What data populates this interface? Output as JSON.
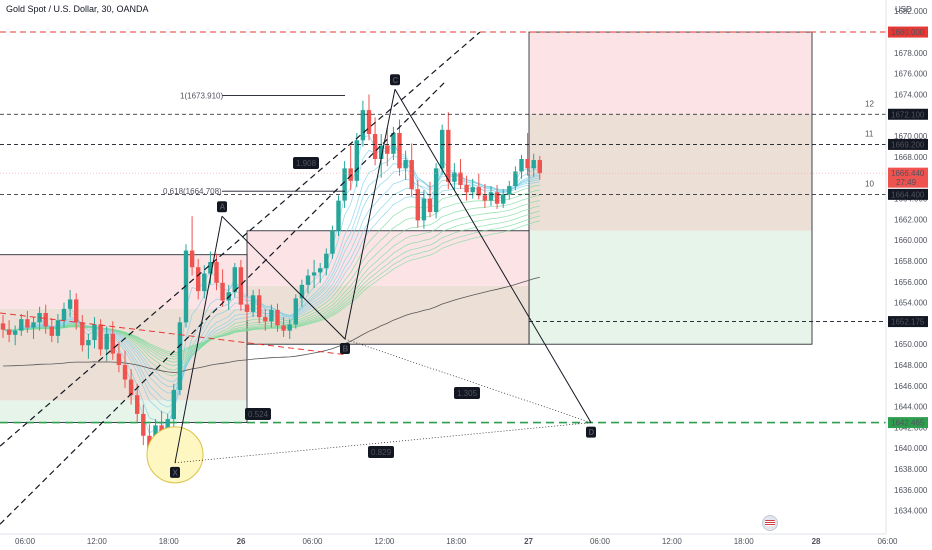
{
  "header": {
    "title": "Gold Spot / U.S. Dollar, 30, OANDA"
  },
  "colors": {
    "up": "#26a69a",
    "down": "#ef5350",
    "sell_zone": "#fce4e6",
    "buy_zone": "#e6f4ea",
    "neutral_zone": "#ecdfd6",
    "ribbon_green": "#7bd99b",
    "ribbon_blue": "#7fd0e8",
    "red_line": "#e53935",
    "green_line": "#2e9e4f"
  },
  "chart_data": {
    "type": "candlestick",
    "currency": "USD",
    "y_axis": {
      "ylim": [
        1633.2,
        1682.6
      ],
      "ticks": [
        "1634.000",
        "1636.000",
        "1638.000",
        "1640.000",
        "1642.000",
        "1644.000",
        "1646.000",
        "1648.000",
        "1650.000",
        "1652.000",
        "1654.000",
        "1656.000",
        "1658.000",
        "1660.000",
        "1662.000",
        "1664.000",
        "1666.000",
        "1668.000",
        "1670.000",
        "1672.000",
        "1674.000",
        "1676.000",
        "1678.000",
        "1680.000",
        "1682.000"
      ]
    },
    "x_axis": {
      "ticks": [
        "06:00",
        "12:00",
        "18:00",
        "26",
        "06:00",
        "12:00",
        "18:00",
        "27",
        "06:00",
        "12:00",
        "18:00",
        "28",
        "06:00"
      ]
    },
    "price_labels": [
      {
        "text": "1680.000",
        "price": 1680.0,
        "color": "#e53935"
      },
      {
        "text": "1672.100",
        "price": 1672.1,
        "color": "#131722"
      },
      {
        "text": "1669.200",
        "price": 1669.2,
        "color": "#131722"
      },
      {
        "text": "1666.440",
        "sub": "27:49",
        "price": 1666.44,
        "color": "#ef5350"
      },
      {
        "text": "1664.400",
        "price": 1664.4,
        "color": "#131722"
      },
      {
        "text": "1652.175",
        "price": 1652.175,
        "color": "#131722"
      },
      {
        "text": "1642.465",
        "price": 1642.465,
        "color": "#2e9e4f"
      }
    ],
    "level_numbers": [
      {
        "text": "12",
        "price": 1672.1
      },
      {
        "text": "11",
        "price": 1669.2
      },
      {
        "text": "10",
        "price": 1664.4
      }
    ],
    "fib_labels": [
      {
        "text": "1(1673.910)",
        "price": 1673.91
      },
      {
        "text": "0.618(1664.708)",
        "price": 1664.708
      }
    ],
    "pattern_points": [
      {
        "label": "X",
        "price": 1638.6
      },
      {
        "label": "A",
        "price": 1662.3
      },
      {
        "label": "B",
        "price": 1650.5
      },
      {
        "label": "C",
        "price": 1674.5
      },
      {
        "label": "D",
        "price": 1642.465
      }
    ],
    "ratios": [
      "0.524",
      "1.908",
      "1.305",
      "0.829"
    ],
    "candles": [
      [
        1652.0,
        1652.8,
        1650.6,
        1651.4
      ],
      [
        1651.4,
        1652.3,
        1650.2,
        1650.9
      ],
      [
        1650.9,
        1651.8,
        1649.9,
        1651.3
      ],
      [
        1651.3,
        1652.9,
        1650.8,
        1652.4
      ],
      [
        1652.4,
        1653.2,
        1651.1,
        1651.6
      ],
      [
        1651.6,
        1652.6,
        1650.5,
        1652.1
      ],
      [
        1652.1,
        1653.6,
        1651.3,
        1653.0
      ],
      [
        1653.0,
        1653.8,
        1651.0,
        1651.7
      ],
      [
        1651.7,
        1652.5,
        1650.2,
        1650.8
      ],
      [
        1650.8,
        1652.9,
        1650.1,
        1652.3
      ],
      [
        1652.3,
        1654.0,
        1651.6,
        1653.4
      ],
      [
        1653.4,
        1655.2,
        1652.6,
        1654.3
      ],
      [
        1654.3,
        1654.9,
        1651.4,
        1652.1
      ],
      [
        1652.1,
        1652.8,
        1649.3,
        1649.9
      ],
      [
        1649.9,
        1651.0,
        1648.6,
        1650.4
      ],
      [
        1650.4,
        1652.6,
        1649.6,
        1651.9
      ],
      [
        1651.9,
        1652.4,
        1648.9,
        1649.5
      ],
      [
        1649.5,
        1651.7,
        1648.4,
        1651.0
      ],
      [
        1651.0,
        1652.2,
        1648.5,
        1649.1
      ],
      [
        1649.1,
        1650.2,
        1647.3,
        1648.0
      ],
      [
        1648.0,
        1649.4,
        1645.8,
        1646.6
      ],
      [
        1646.6,
        1647.6,
        1644.2,
        1645.1
      ],
      [
        1645.1,
        1646.2,
        1642.5,
        1643.3
      ],
      [
        1643.3,
        1644.2,
        1640.3,
        1641.2
      ],
      [
        1641.2,
        1642.3,
        1638.6,
        1639.9
      ],
      [
        1639.9,
        1642.8,
        1639.2,
        1642.2
      ],
      [
        1642.2,
        1643.6,
        1640.6,
        1641.5
      ],
      [
        1641.5,
        1643.3,
        1640.2,
        1642.8
      ],
      [
        1642.8,
        1646.2,
        1642.0,
        1645.6
      ],
      [
        1645.6,
        1652.6,
        1645.1,
        1652.1
      ],
      [
        1652.1,
        1659.6,
        1651.6,
        1659.0
      ],
      [
        1659.0,
        1662.3,
        1656.6,
        1657.4
      ],
      [
        1657.4,
        1658.2,
        1654.3,
        1655.1
      ],
      [
        1655.1,
        1657.6,
        1654.4,
        1656.8
      ],
      [
        1656.8,
        1658.9,
        1655.8,
        1657.9
      ],
      [
        1657.9,
        1658.7,
        1655.2,
        1655.9
      ],
      [
        1655.9,
        1657.2,
        1653.6,
        1654.2
      ],
      [
        1654.2,
        1655.7,
        1653.3,
        1655.0
      ],
      [
        1655.0,
        1657.8,
        1654.5,
        1657.4
      ],
      [
        1657.4,
        1658.1,
        1653.2,
        1653.8
      ],
      [
        1653.8,
        1654.6,
        1652.3,
        1653.1
      ],
      [
        1653.1,
        1655.2,
        1652.6,
        1654.7
      ],
      [
        1654.7,
        1655.3,
        1652.0,
        1652.6
      ],
      [
        1652.6,
        1653.4,
        1651.3,
        1652.2
      ],
      [
        1652.2,
        1653.8,
        1651.6,
        1653.3
      ],
      [
        1653.3,
        1653.9,
        1651.2,
        1651.8
      ],
      [
        1651.8,
        1652.6,
        1650.7,
        1651.3
      ],
      [
        1651.3,
        1652.4,
        1650.5,
        1651.9
      ],
      [
        1651.9,
        1654.8,
        1651.5,
        1654.4
      ],
      [
        1654.4,
        1656.2,
        1653.6,
        1655.7
      ],
      [
        1655.7,
        1657.2,
        1654.9,
        1656.6
      ],
      [
        1656.6,
        1658.1,
        1655.4,
        1656.9
      ],
      [
        1656.9,
        1657.8,
        1655.9,
        1657.3
      ],
      [
        1657.3,
        1659.2,
        1656.6,
        1658.7
      ],
      [
        1658.7,
        1661.4,
        1658.2,
        1660.9
      ],
      [
        1660.9,
        1664.3,
        1660.4,
        1663.8
      ],
      [
        1663.8,
        1667.6,
        1663.1,
        1666.9
      ],
      [
        1666.9,
        1669.1,
        1664.8,
        1665.7
      ],
      [
        1665.7,
        1670.3,
        1665.1,
        1669.6
      ],
      [
        1669.6,
        1673.4,
        1669.0,
        1672.5
      ],
      [
        1672.5,
        1674.0,
        1669.6,
        1670.2
      ],
      [
        1670.2,
        1671.8,
        1667.2,
        1667.8
      ],
      [
        1667.8,
        1670.2,
        1666.0,
        1669.1
      ],
      [
        1669.1,
        1670.8,
        1667.1,
        1668.3
      ],
      [
        1668.3,
        1670.9,
        1667.7,
        1670.3
      ],
      [
        1670.3,
        1671.6,
        1666.2,
        1666.9
      ],
      [
        1666.9,
        1668.6,
        1665.8,
        1667.7
      ],
      [
        1667.7,
        1669.3,
        1664.2,
        1664.9
      ],
      [
        1664.9,
        1665.8,
        1661.2,
        1661.9
      ],
      [
        1661.9,
        1664.8,
        1661.1,
        1664.0
      ],
      [
        1664.0,
        1665.6,
        1662.2,
        1662.7
      ],
      [
        1662.7,
        1667.4,
        1662.1,
        1666.9
      ],
      [
        1666.9,
        1671.1,
        1666.3,
        1670.6
      ],
      [
        1670.6,
        1672.3,
        1664.9,
        1665.6
      ],
      [
        1665.6,
        1667.4,
        1664.8,
        1666.5
      ],
      [
        1666.5,
        1667.8,
        1664.9,
        1665.3
      ],
      [
        1665.3,
        1666.2,
        1663.8,
        1664.6
      ],
      [
        1664.6,
        1665.9,
        1664.0,
        1665.1
      ],
      [
        1665.1,
        1666.4,
        1663.9,
        1664.3
      ],
      [
        1664.3,
        1665.4,
        1663.1,
        1663.8
      ],
      [
        1663.8,
        1665.2,
        1663.3,
        1664.6
      ],
      [
        1664.6,
        1665.3,
        1663.0,
        1663.5
      ],
      [
        1663.5,
        1664.9,
        1663.1,
        1664.4
      ],
      [
        1664.4,
        1665.7,
        1663.9,
        1665.2
      ],
      [
        1665.2,
        1667.1,
        1664.8,
        1666.6
      ],
      [
        1666.6,
        1668.2,
        1665.9,
        1667.8
      ],
      [
        1667.8,
        1670.3,
        1666.2,
        1666.9
      ],
      [
        1666.9,
        1668.3,
        1666.1,
        1667.7
      ],
      [
        1667.7,
        1668.1,
        1665.8,
        1666.44
      ]
    ]
  }
}
